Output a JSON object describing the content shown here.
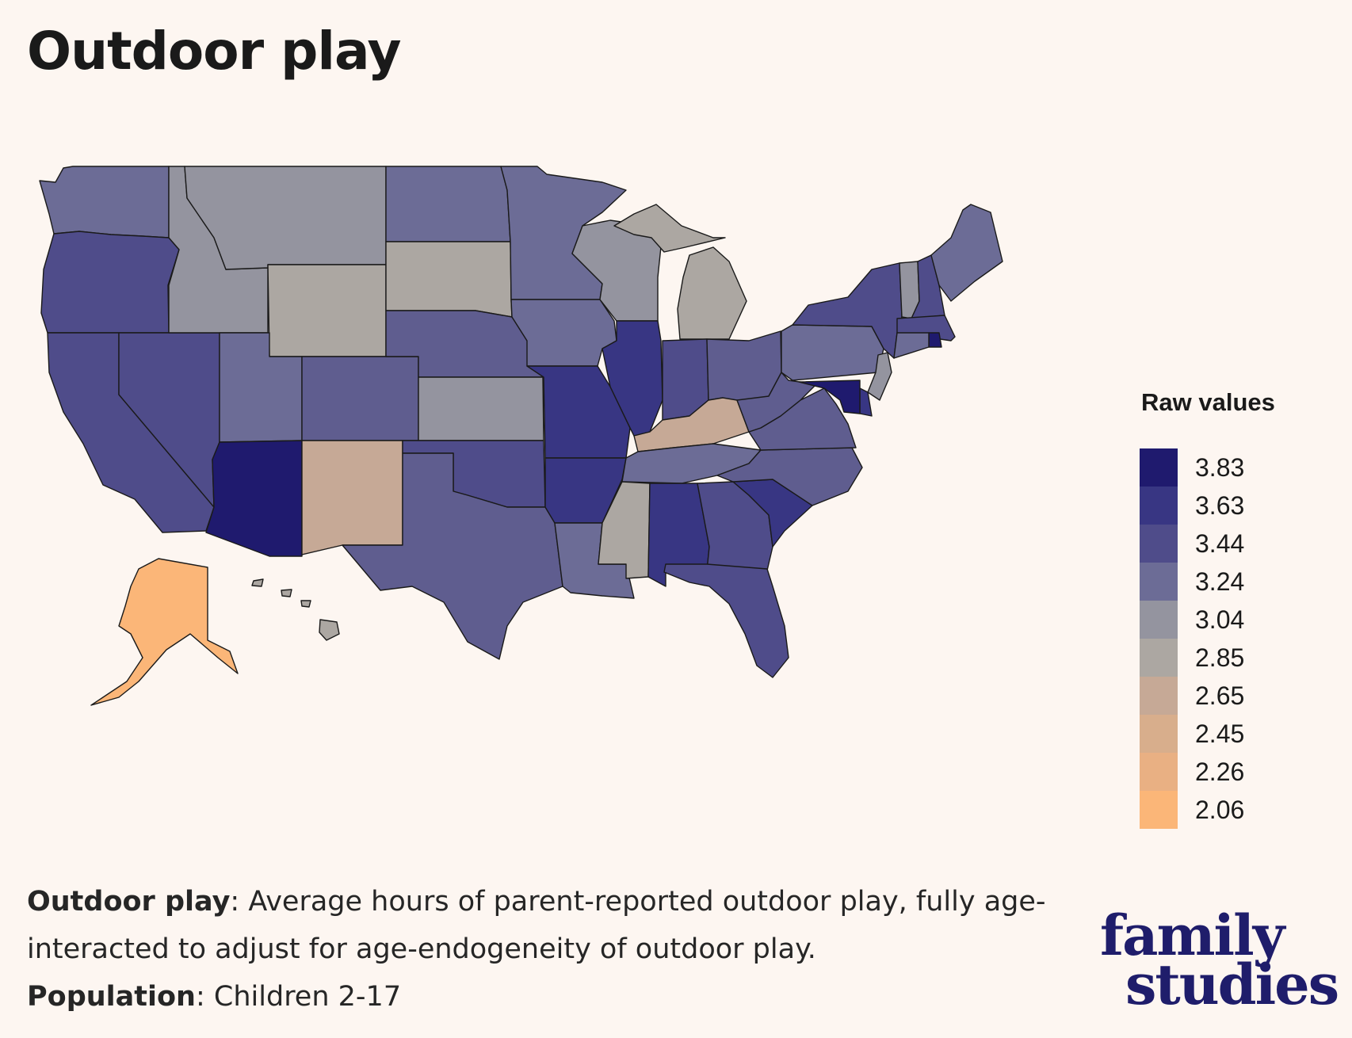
{
  "title": "Outdoor play",
  "legend": {
    "title": "Raw values",
    "items": [
      {
        "label": "3.83",
        "color": "#1f1a6e"
      },
      {
        "label": "3.63",
        "color": "#383683"
      },
      {
        "label": "3.44",
        "color": "#4f4c8a"
      },
      {
        "label": "3.24",
        "color": "#6c6c96"
      },
      {
        "label": "3.04",
        "color": "#94949f"
      },
      {
        "label": "2.85",
        "color": "#aca7a2"
      },
      {
        "label": "2.65",
        "color": "#c6a996"
      },
      {
        "label": "2.45",
        "color": "#d8ae8c"
      },
      {
        "label": "2.26",
        "color": "#e9b083"
      },
      {
        "label": "2.06",
        "color": "#fbb678"
      }
    ]
  },
  "caption": {
    "line1_bold": "Outdoor play",
    "line1_rest": ": Average hours of parent-reported outdoor play, fully age-interacted to adjust for age-endogeneity of outdoor play.",
    "line2_bold": "Population",
    "line2_rest": ": Children 2-17"
  },
  "logo": {
    "line1": "family",
    "line2": "studies"
  },
  "states": {
    "WA": "#6c6c96",
    "OR": "#4f4c8a",
    "CA": "#4f4c8a",
    "NV": "#4f4c8a",
    "ID": "#94949f",
    "MT": "#94949f",
    "WY": "#aca7a2",
    "UT": "#6c6c96",
    "AZ": "#1f1a6e",
    "CO": "#5f5d8f",
    "NM": "#c6a996",
    "ND": "#6c6c96",
    "SD": "#aca7a2",
    "NE": "#5f5d8f",
    "KS": "#94949f",
    "OK": "#4f4c8a",
    "TX": "#5f5d8f",
    "MN": "#6c6c96",
    "IA": "#6c6c96",
    "MO": "#383683",
    "AR": "#383683",
    "LA": "#6c6c96",
    "WI": "#94949f",
    "IL": "#383683",
    "MI": "#aca7a2",
    "IN": "#4f4c8a",
    "OH": "#5f5d8f",
    "KY": "#c6a996",
    "TN": "#6c6c96",
    "MS": "#aca7a2",
    "AL": "#383683",
    "GA": "#4f4c8a",
    "FL": "#4f4c8a",
    "SC": "#383683",
    "NC": "#5f5d8f",
    "VA": "#5f5d8f",
    "WV": "#5f5d8f",
    "PA": "#6c6c96",
    "NY": "#4f4c8a",
    "VT": "#94949f",
    "NH": "#4f4c8a",
    "ME": "#6c6c96",
    "MA": "#4f4c8a",
    "RI": "#1f1a6e",
    "CT": "#6c6c96",
    "NJ": "#94949f",
    "DE": "#383683",
    "MD": "#1f1a6e",
    "AK": "#fbb678",
    "HI": "#aca7a2"
  }
}
